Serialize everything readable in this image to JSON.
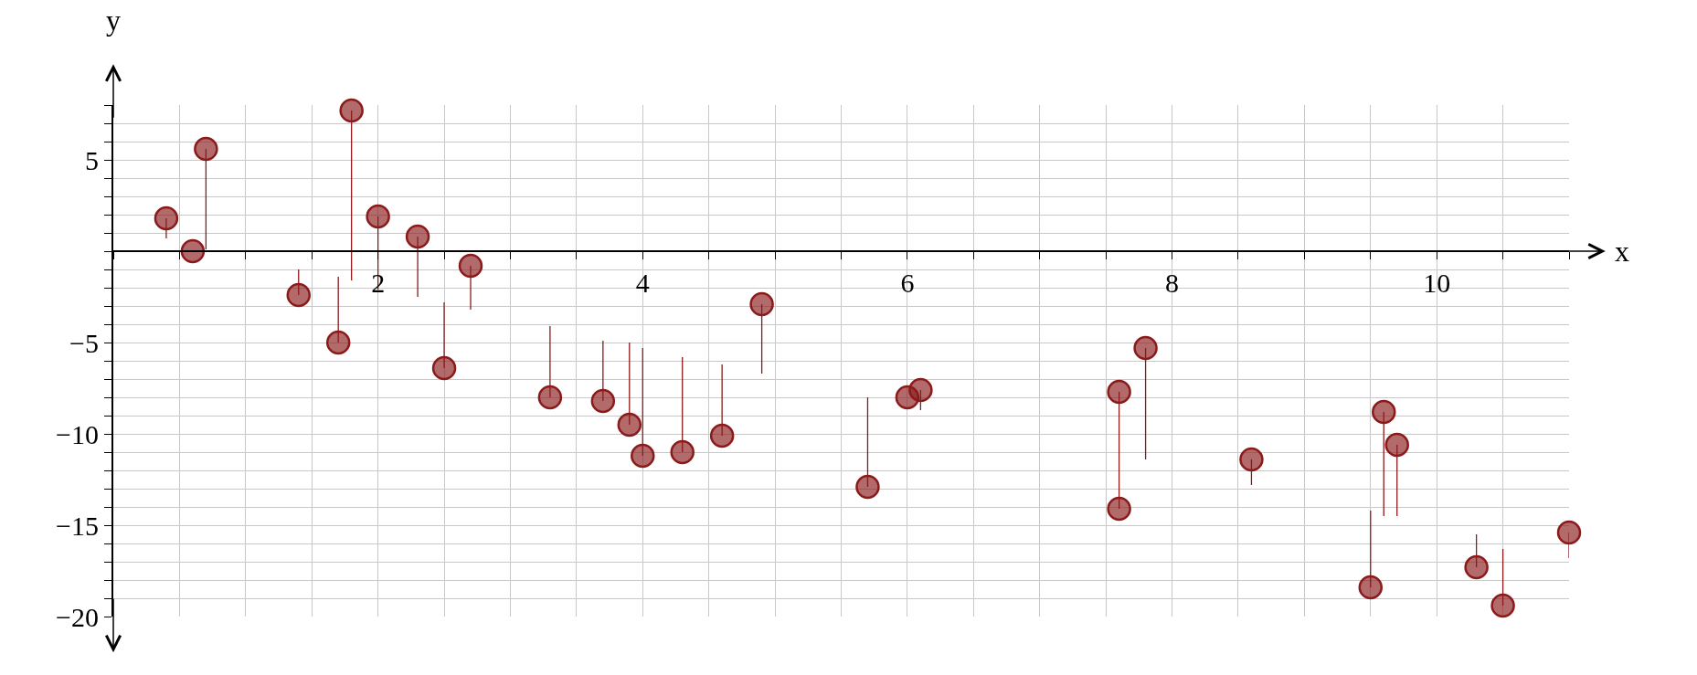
{
  "chart_data": {
    "type": "scatter",
    "xlabel": "x",
    "ylabel": "y",
    "x": [
      0.4,
      0.6,
      0.7,
      1.4,
      1.7,
      1.8,
      2.0,
      2.3,
      2.5,
      2.7,
      3.3,
      3.7,
      3.9,
      4.0,
      4.3,
      4.6,
      4.9,
      5.7,
      6.0,
      6.1,
      7.6,
      7.6,
      7.8,
      8.6,
      9.5,
      9.6,
      9.7,
      10.3,
      10.5,
      11.0
    ],
    "series": [
      {
        "color": "#8b1a1a",
        "values": [
          1.8,
          0,
          5.6,
          -2.4,
          -5.0,
          7.7,
          1.9,
          0.8,
          -6.4,
          -0.8,
          -8.0,
          -8.2,
          -9.5,
          -11.2,
          -11.0,
          -10.1,
          -2.9,
          -12.9,
          -8.0,
          -7.6,
          -7.7,
          -14.1,
          -5.3,
          -11.4,
          -18.4,
          -8.8,
          -10.6,
          -17.3,
          -19.4,
          -15.4
        ],
        "errors": [
          [
            0.7,
            1.8
          ],
          null,
          [
            0.1,
            5.6
          ],
          [
            -2.4,
            -1.0
          ],
          [
            -5.0,
            -1.4
          ],
          [
            -1.6,
            7.7
          ],
          [
            -2.1,
            1.9
          ],
          [
            -2.5,
            0.8
          ],
          [
            -6.4,
            -2.8
          ],
          [
            -3.2,
            -0.8
          ],
          [
            -8.0,
            -4.1
          ],
          [
            -8.2,
            -4.9
          ],
          [
            -9.5,
            -5.0
          ],
          [
            -11.2,
            -5.3
          ],
          [
            -11.0,
            -5.8
          ],
          [
            -10.1,
            -6.2
          ],
          [
            -6.7,
            -2.9
          ],
          [
            -12.9,
            -8.0
          ],
          null,
          [
            -8.7,
            -7.6
          ],
          [
            -11.2,
            -7.7
          ],
          [
            -14.1,
            -11.2
          ],
          [
            -11.4,
            -5.3
          ],
          [
            -12.8,
            -11.4
          ],
          [
            -18.4,
            -14.2
          ],
          [
            -14.5,
            -8.8
          ],
          [
            -14.5,
            -10.6
          ],
          [
            -17.3,
            -15.5
          ],
          [
            -19.4,
            -16.3
          ],
          [
            -16.8,
            -15.4
          ]
        ]
      }
    ],
    "xlim": [
      0,
      11
    ],
    "xticks": [
      {
        "value": 0,
        "label": null
      },
      {
        "value": 0.5,
        "label": null
      },
      {
        "value": 1,
        "label": null
      },
      {
        "value": 1.5,
        "label": null
      },
      2,
      {
        "value": 2.5,
        "label": null
      },
      {
        "value": 3,
        "label": null
      },
      {
        "value": 3.5,
        "label": null
      },
      4,
      {
        "value": 4.5,
        "label": null
      },
      {
        "value": 5,
        "label": null
      },
      {
        "value": 5.5,
        "label": null
      },
      6,
      {
        "value": 6.5,
        "label": null
      },
      {
        "value": 7,
        "label": null
      },
      {
        "value": 7.5,
        "label": null
      },
      8,
      {
        "value": 8.5,
        "label": null
      },
      {
        "value": 9,
        "label": null
      },
      {
        "value": 9.5,
        "label": null
      },
      10,
      {
        "value": 10.5,
        "label": null
      },
      {
        "value": 11,
        "label": null
      }
    ],
    "ylim": [
      -20,
      8
    ],
    "yticks": [
      {
        "value": 8,
        "label": null
      },
      {
        "value": 7,
        "label": null
      },
      {
        "value": 6,
        "label": null
      },
      5,
      {
        "value": 4,
        "label": null
      },
      {
        "value": 3,
        "label": null
      },
      {
        "value": 2,
        "label": null
      },
      {
        "value": 1,
        "label": null
      },
      {
        "value": 0,
        "label": null
      },
      {
        "value": -1,
        "label": null
      },
      {
        "value": -2,
        "label": null
      },
      {
        "value": -3,
        "label": null
      },
      {
        "value": -4,
        "label": null
      },
      {
        "value": -5,
        "label": "−5"
      },
      {
        "value": -6,
        "label": null
      },
      {
        "value": -7,
        "label": null
      },
      {
        "value": -8,
        "label": null
      },
      {
        "value": -9,
        "label": null
      },
      {
        "value": -10,
        "label": "−10"
      },
      {
        "value": -11,
        "label": null
      },
      {
        "value": -12,
        "label": null
      },
      {
        "value": -13,
        "label": null
      },
      {
        "value": -14,
        "label": null
      },
      {
        "value": -15,
        "label": "−15"
      },
      {
        "value": -16,
        "label": null
      },
      {
        "value": -17,
        "label": null
      },
      {
        "value": -18,
        "label": null
      },
      {
        "value": -19,
        "label": null
      },
      {
        "value": -20,
        "label": "−20"
      }
    ],
    "grid": true,
    "legend": false,
    "marker": "circle"
  }
}
